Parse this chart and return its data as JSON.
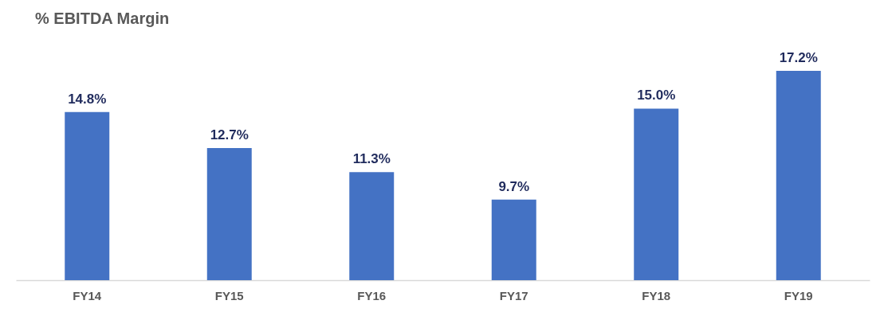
{
  "chart_data": {
    "type": "bar",
    "title": "% EBITDA Margin",
    "categories": [
      "FY14",
      "FY15",
      "FY16",
      "FY17",
      "FY18",
      "FY19"
    ],
    "values": [
      14.8,
      12.7,
      11.3,
      9.7,
      15.0,
      17.2
    ],
    "value_labels": [
      "14.8%",
      "12.7%",
      "11.3%",
      "9.7%",
      "15.0%",
      "17.2%"
    ],
    "color": "#4472c4",
    "ylim": [
      5,
      17.2
    ],
    "tick_labels": "x"
  }
}
